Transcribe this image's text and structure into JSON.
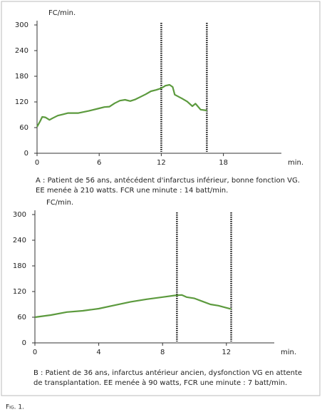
{
  "figure_label": "Fig. 1.",
  "chart_data": [
    {
      "type": "line",
      "y_label": "FC/min.",
      "x_label": "min.",
      "caption": [
        "A : Patient de 56 ans, antécédent d'infarctus inférieur, bonne fonction VG.",
        "EE menée à 210 watts. FCR une minute : 14 batt/min."
      ],
      "xlim": [
        0,
        23.6
      ],
      "ylim": [
        0,
        300
      ],
      "xticks": [
        0,
        6,
        12,
        18
      ],
      "yticks": [
        0,
        60,
        120,
        180,
        240,
        300
      ],
      "vlines": [
        12,
        16.4
      ],
      "series": [
        {
          "color": "#5c9a3e",
          "x": [
            0,
            0.3,
            0.5,
            0.8,
            1.2,
            1.5,
            2,
            2.5,
            3,
            4,
            5,
            6,
            6.5,
            7,
            7.5,
            8,
            8.5,
            9,
            9.5,
            10,
            10.5,
            11,
            11.5,
            12,
            12.4,
            12.8,
            13.1,
            13.3,
            14,
            14.5,
            15,
            15.3,
            15.8,
            16.4
          ],
          "values": [
            62,
            75,
            85,
            84,
            78,
            82,
            88,
            91,
            94,
            94,
            99,
            105,
            108,
            109,
            117,
            123,
            125,
            122,
            126,
            132,
            138,
            145,
            148,
            152,
            158,
            160,
            155,
            137,
            128,
            121,
            110,
            116,
            102,
            100
          ]
        }
      ]
    },
    {
      "type": "line",
      "y_label": "FC/min.",
      "x_label": "min.",
      "caption": [
        "B : Patient de 36 ans, infarctus antérieur ancien, dysfonction VG en attente",
        "de transplantation. EE menée à 90 watts, FCR une minute : 7 batt/min."
      ],
      "xlim": [
        0,
        15
      ],
      "ylim": [
        0,
        300
      ],
      "xticks": [
        0,
        4,
        8,
        12
      ],
      "yticks": [
        0,
        60,
        120,
        180,
        240,
        300
      ],
      "vlines": [
        8.9,
        12.3
      ],
      "series": [
        {
          "color": "#5c9a3e",
          "x": [
            0,
            1,
            2,
            3,
            4,
            5,
            6,
            7,
            8,
            8.8,
            9.2,
            9.5,
            10,
            10.5,
            11,
            11.5,
            12,
            12.3
          ],
          "values": [
            60,
            65,
            72,
            75,
            80,
            88,
            96,
            102,
            107,
            111,
            112,
            107,
            104,
            97,
            90,
            87,
            82,
            79
          ]
        }
      ]
    }
  ]
}
